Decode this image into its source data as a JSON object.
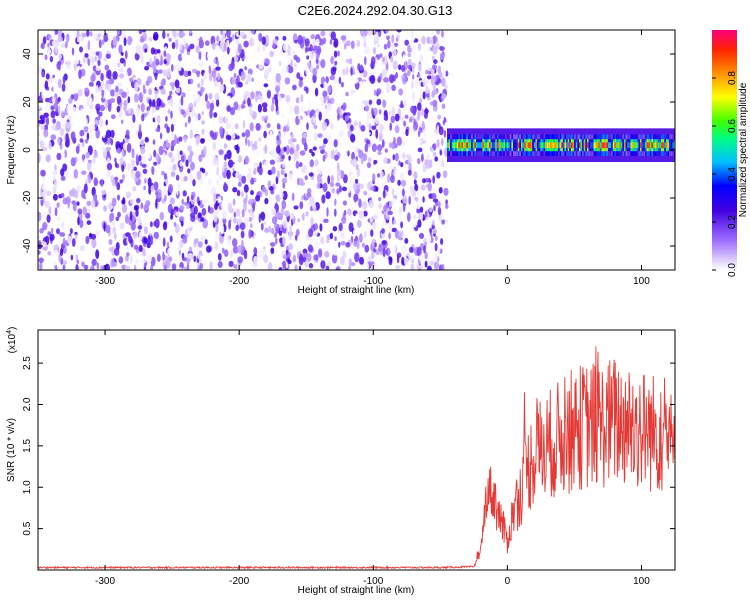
{
  "title": "C2E6.2024.292.04.30.G13",
  "chart_data": [
    {
      "type": "heatmap",
      "xlabel": "Height of straight line (km)",
      "ylabel": "Frequency (Hz)",
      "xlim": [
        -350,
        125
      ],
      "ylim": [
        -50,
        50
      ],
      "x_ticks": [
        -300,
        -200,
        -100,
        0,
        100
      ],
      "y_ticks": [
        -40,
        -20,
        0,
        20,
        40
      ],
      "colorbar": {
        "label": "Normalized spectral amplitude",
        "range": [
          0.0,
          1.0
        ],
        "ticks": [
          0.0,
          0.2,
          0.4,
          0.6,
          0.8
        ]
      },
      "regions": [
        {
          "x_range": [
            -350,
            -45
          ],
          "pattern": "broadband low-amplitude noise",
          "amplitude_range": [
            0.0,
            0.2
          ]
        },
        {
          "x_range": [
            -45,
            125
          ],
          "pattern": "narrow band centered on 2 Hz",
          "frequency_center": 2,
          "amplitude_range": [
            0.3,
            0.95
          ]
        }
      ]
    },
    {
      "type": "line",
      "xlabel": "Height of straight line (km)",
      "ylabel": "SNR (10 * v/v)",
      "scale_label": "(x10",
      "scale_exponent": "4",
      "xlim": [
        -350,
        125
      ],
      "ylim": [
        0,
        29000
      ],
      "x_ticks": [
        -300,
        -200,
        -100,
        0,
        100
      ],
      "y_ticks": [
        0.5,
        1.0,
        1.5,
        2.0,
        2.5
      ],
      "color": "#e53935",
      "series": [
        {
          "x": [
            -350,
            -300,
            -250,
            -200,
            -150,
            -100,
            -50,
            -25,
            -20,
            -15,
            -10,
            -5,
            0,
            5,
            10,
            15,
            20,
            25,
            30,
            40,
            50,
            60,
            70,
            80,
            90,
            100,
            110,
            120,
            125
          ],
          "y": [
            300,
            300,
            300,
            300,
            300,
            300,
            300,
            400,
            2000,
            10000,
            9000,
            6000,
            3500,
            7500,
            9500,
            12000,
            14000,
            14500,
            15000,
            16000,
            17000,
            17500,
            17500,
            18000,
            17500,
            17000,
            16500,
            16500,
            13000
          ]
        }
      ]
    }
  ]
}
